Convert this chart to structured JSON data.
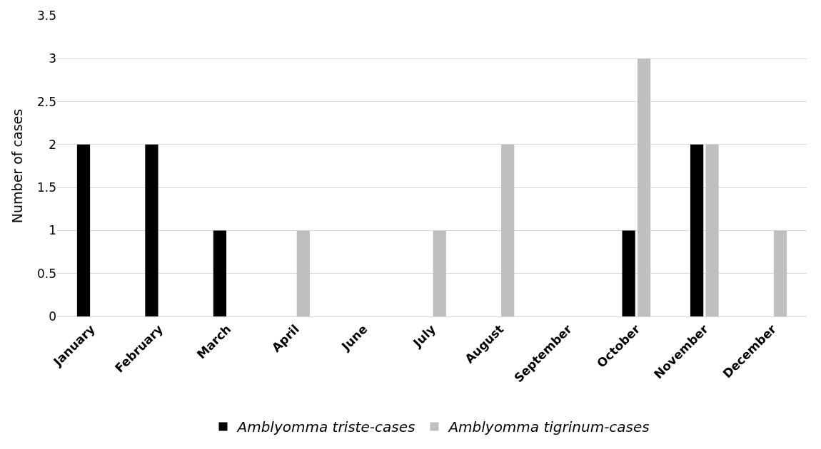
{
  "chart_data": {
    "type": "bar",
    "ylabel": "Number of cases",
    "categories": [
      "January",
      "February",
      "March",
      "April",
      "June",
      "July",
      "August",
      "September",
      "October",
      "November",
      "December"
    ],
    "series": [
      {
        "name": "Amblyomma triste-cases",
        "color": "#000000",
        "values": [
          2,
          2,
          1,
          0,
          0,
          0,
          0,
          0,
          1,
          2,
          0
        ]
      },
      {
        "name": "Amblyomma tigrinum-cases",
        "color": "#bfbfbf",
        "values": [
          0,
          0,
          0,
          1,
          0,
          1,
          2,
          0,
          3,
          2,
          1
        ]
      }
    ],
    "ylim": [
      0,
      3.5
    ],
    "yticks": [
      0,
      0.5,
      1,
      1.5,
      2,
      2.5,
      3,
      3.5
    ],
    "grid": "y",
    "legend": "bottom"
  }
}
